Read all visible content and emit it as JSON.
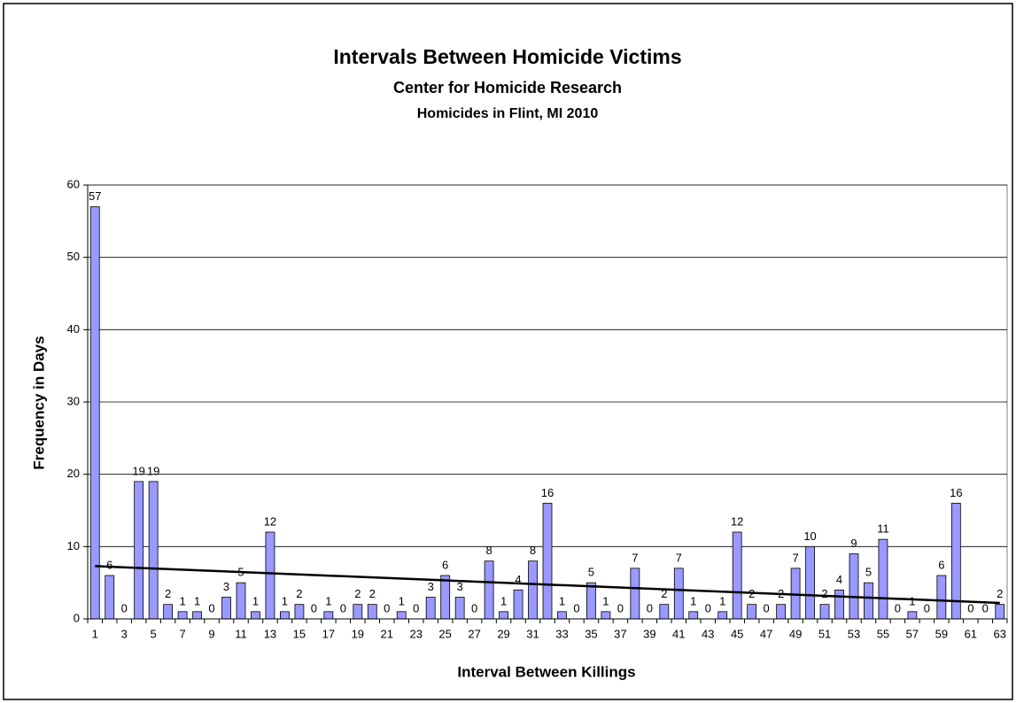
{
  "chart_data": {
    "type": "bar",
    "title": "Intervals Between Homicide Victims",
    "subtitle": "Center for Homicide Research",
    "subtitle2": "Homicides in Flint, MI 2010",
    "x_label": "Interval Between Killings",
    "y_label": "Frequency in Days",
    "categories": [
      1,
      null,
      3,
      null,
      5,
      null,
      7,
      null,
      9,
      null,
      11,
      null,
      13,
      null,
      15,
      null,
      17,
      null,
      19,
      null,
      21,
      null,
      23,
      null,
      25,
      null,
      27,
      null,
      29,
      null,
      31,
      null,
      33,
      null,
      35,
      null,
      37,
      null,
      39,
      null,
      41,
      null,
      43,
      null,
      45,
      null,
      47,
      null,
      49,
      null,
      51,
      null,
      53,
      null,
      55,
      null,
      57,
      null,
      59,
      null,
      61,
      null,
      63
    ],
    "values": [
      57,
      6,
      0,
      19,
      19,
      2,
      1,
      1,
      0,
      3,
      5,
      1,
      12,
      1,
      2,
      0,
      1,
      0,
      2,
      2,
      0,
      1,
      0,
      3,
      6,
      3,
      0,
      8,
      1,
      4,
      8,
      16,
      1,
      0,
      5,
      1,
      0,
      7,
      0,
      2,
      7,
      1,
      0,
      1,
      12,
      2,
      0,
      2,
      7,
      10,
      2,
      4,
      9,
      5,
      11,
      0,
      1,
      0,
      6,
      16,
      0,
      0,
      2
    ],
    "color": "#9999ff",
    "trendline": {
      "start": 7.3,
      "end": 2.2,
      "color": "#000000"
    },
    "ylim": [
      0,
      60
    ],
    "yticks": [
      0,
      10,
      20,
      30,
      40,
      50,
      60
    ],
    "grid": true
  }
}
